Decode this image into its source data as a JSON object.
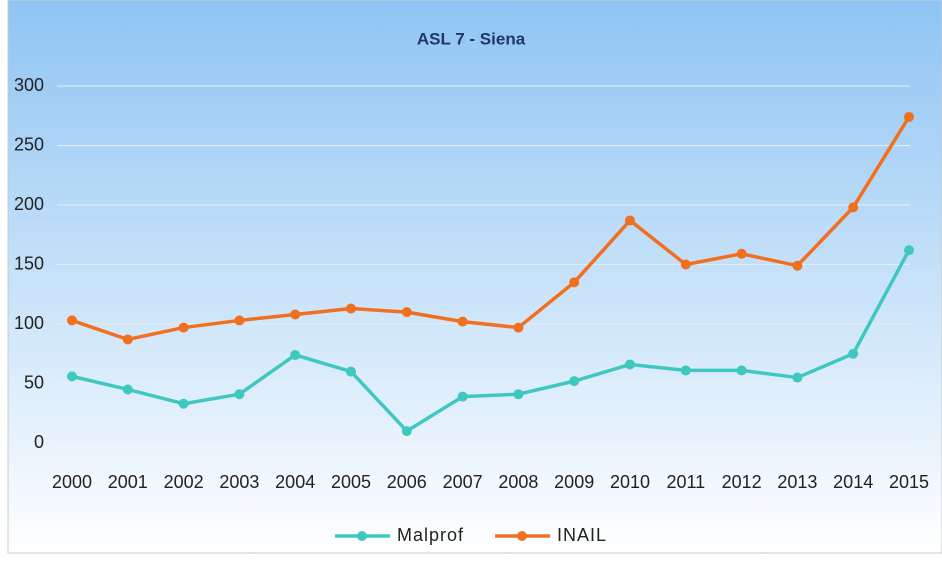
{
  "chart_data": {
    "type": "line",
    "title": "ASL 7 - Siena",
    "categories": [
      "2000",
      "2001",
      "2002",
      "2003",
      "2004",
      "2005",
      "2006",
      "2007",
      "2008",
      "2009",
      "2010",
      "2011",
      "2012",
      "2013",
      "2014",
      "2015"
    ],
    "series": [
      {
        "name": "Malprof",
        "color": "#3fc8bf",
        "values": [
          56,
          45,
          33,
          41,
          74,
          60,
          10,
          39,
          41,
          52,
          66,
          61,
          61,
          55,
          75,
          162
        ]
      },
      {
        "name": "INAIL",
        "color": "#f07020",
        "values": [
          103,
          87,
          97,
          103,
          108,
          113,
          110,
          102,
          97,
          135,
          187,
          150,
          159,
          149,
          198,
          274
        ]
      }
    ],
    "ylim": [
      0,
      300
    ],
    "yticks": [
      0,
      50,
      100,
      150,
      200,
      250,
      300
    ],
    "grid": true,
    "legend": "bottom"
  }
}
